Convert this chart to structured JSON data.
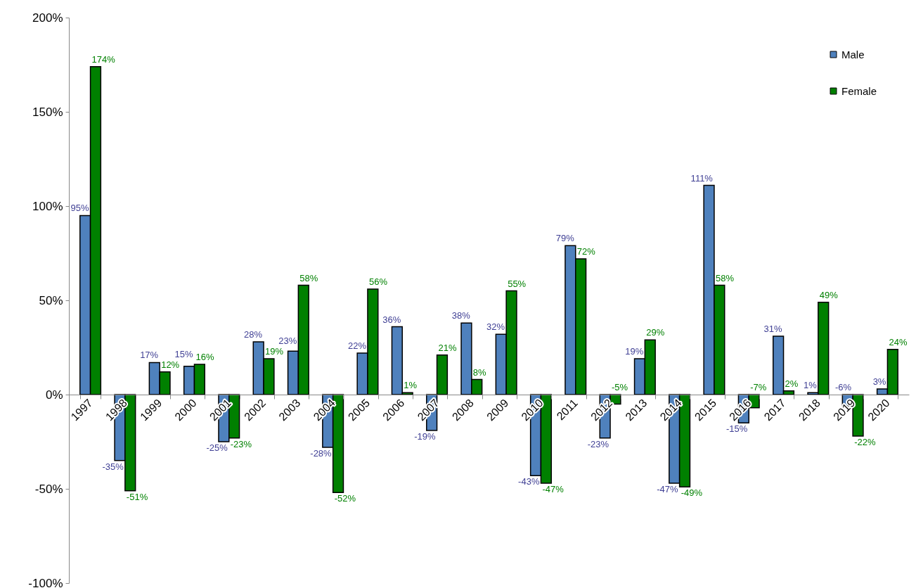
{
  "chart_data": {
    "type": "bar",
    "categories": [
      "1997",
      "1998",
      "1999",
      "2000",
      "2001",
      "2002",
      "2003",
      "2004",
      "2005",
      "2006",
      "2007",
      "2008",
      "2009",
      "2010",
      "2011",
      "2012",
      "2013",
      "2014",
      "2015",
      "2016",
      "2017",
      "2018",
      "2019",
      "2020"
    ],
    "series": [
      {
        "name": "Male",
        "color": "#4f81bd",
        "values": [
          95,
          -35,
          17,
          15,
          -25,
          28,
          23,
          -28,
          22,
          36,
          -19,
          38,
          32,
          -43,
          79,
          -23,
          19,
          -47,
          111,
          -15,
          31,
          1,
          -6,
          3
        ],
        "value_labels": [
          "95%",
          "-35%",
          "17%",
          "15%",
          "-25%",
          "28%",
          "23%",
          "-28%",
          "22%",
          "36%",
          "-19%",
          "38%",
          "32%",
          "-43%",
          "79%",
          "-23%",
          "19%",
          "-47%",
          "111%",
          "-15%",
          "31%",
          "1%",
          "-6%",
          "3%"
        ]
      },
      {
        "name": "Female",
        "color": "#008000",
        "values": [
          174,
          -51,
          12,
          16,
          -23,
          19,
          58,
          -52,
          56,
          1,
          21,
          8,
          55,
          -47,
          72,
          -5,
          29,
          -49,
          58,
          -7,
          2,
          49,
          -22,
          24
        ],
        "value_labels": [
          "174%",
          "-51%",
          "12%",
          "16%",
          "-23%",
          "19%",
          "58%",
          "-52%",
          "56%",
          "1%",
          "21%",
          "8%",
          "55%",
          "-47%",
          "72%",
          "-5%",
          "29%",
          "-49%",
          "58%",
          "-7%",
          "2%",
          "49%",
          "-22%",
          "24%"
        ]
      }
    ],
    "ylim": [
      -100,
      200
    ],
    "yticks": [
      {
        "value": -100,
        "label": "-100%"
      },
      {
        "value": -50,
        "label": "-50%"
      },
      {
        "value": 0,
        "label": "0%"
      },
      {
        "value": 50,
        "label": "50%"
      },
      {
        "value": 100,
        "label": "100%"
      },
      {
        "value": 150,
        "label": "150%"
      },
      {
        "value": 200,
        "label": "200%"
      }
    ],
    "legend": "top right"
  }
}
